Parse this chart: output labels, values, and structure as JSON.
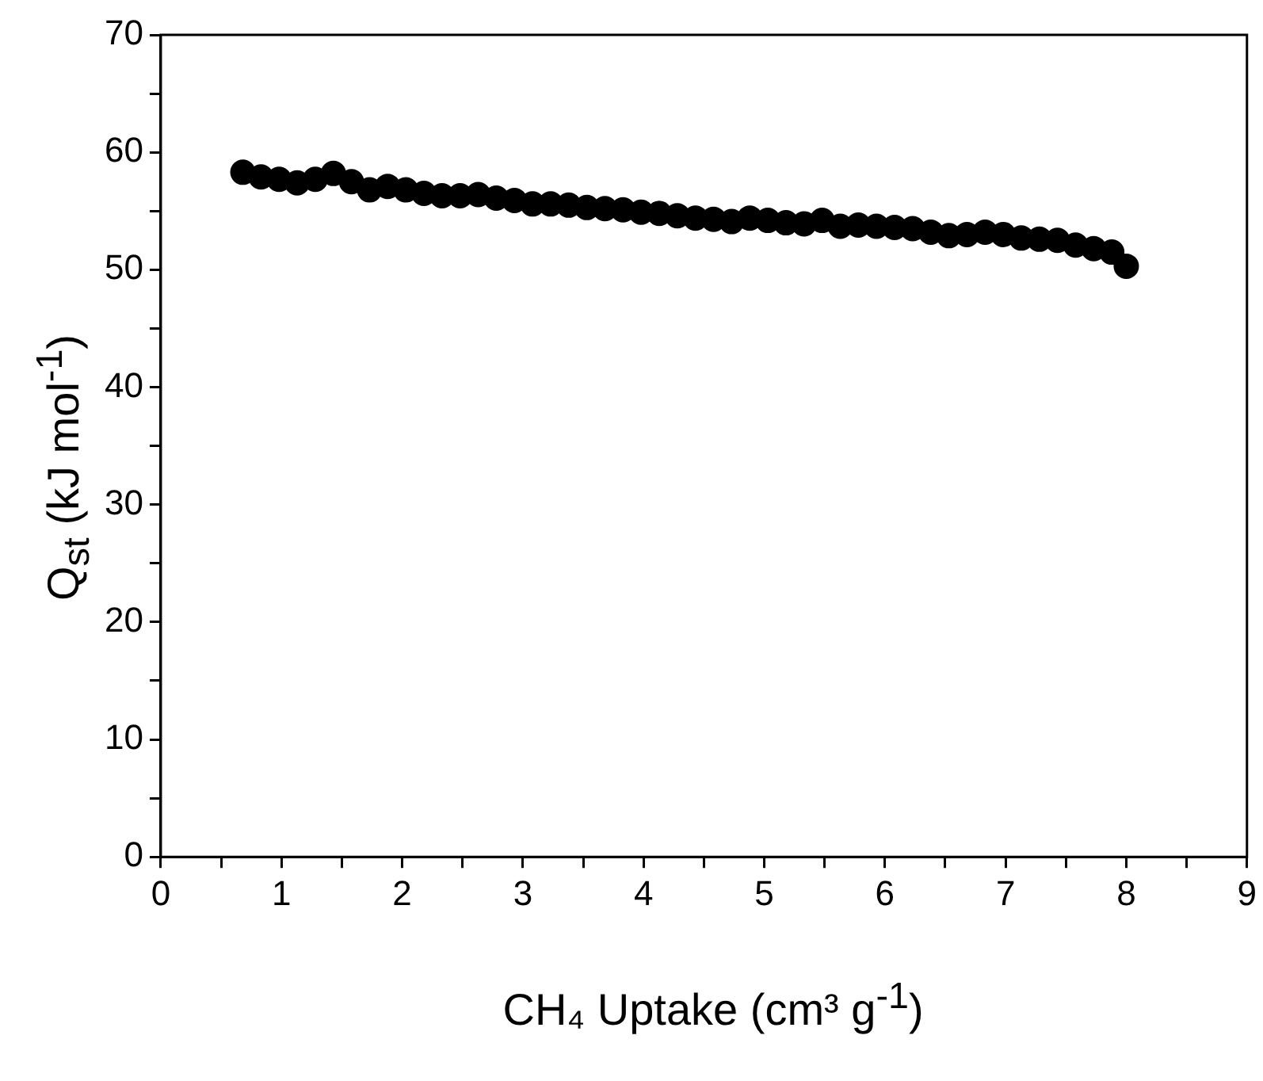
{
  "chart_data": {
    "type": "scatter",
    "xlabel": "CH₄ Uptake (cm³ g$^{-1}$)",
    "ylabel": "Q$_{st}$ (kJ mol$^{-1}$)",
    "x": [
      0.68,
      0.83,
      0.98,
      1.13,
      1.28,
      1.43,
      1.58,
      1.73,
      1.88,
      2.03,
      2.18,
      2.33,
      2.48,
      2.63,
      2.78,
      2.93,
      3.08,
      3.23,
      3.38,
      3.53,
      3.68,
      3.83,
      3.98,
      4.13,
      4.28,
      4.43,
      4.58,
      4.73,
      4.88,
      5.03,
      5.18,
      5.33,
      5.48,
      5.63,
      5.78,
      5.93,
      6.08,
      6.23,
      6.38,
      6.53,
      6.68,
      6.83,
      6.98,
      7.13,
      7.28,
      7.43,
      7.58,
      7.73,
      7.88,
      8.0
    ],
    "series": [
      {
        "color": "#000000",
        "values": [
          58.3,
          57.9,
          57.7,
          57.4,
          57.7,
          58.2,
          57.5,
          56.8,
          57.1,
          56.8,
          56.5,
          56.3,
          56.3,
          56.4,
          56.1,
          55.9,
          55.6,
          55.6,
          55.5,
          55.3,
          55.2,
          55.1,
          54.9,
          54.8,
          54.6,
          54.4,
          54.3,
          54.1,
          54.4,
          54.2,
          54.0,
          53.9,
          54.2,
          53.7,
          53.8,
          53.7,
          53.6,
          53.5,
          53.2,
          52.9,
          53.0,
          53.2,
          53.0,
          52.7,
          52.6,
          52.5,
          52.1,
          51.8,
          51.5,
          50.3
        ]
      }
    ],
    "xlim": [
      0,
      9
    ],
    "xticks": [
      0,
      {
        "value": 0.5,
        "label": null
      },
      1,
      {
        "value": 1.5,
        "label": null
      },
      2,
      {
        "value": 2.5,
        "label": null
      },
      3,
      {
        "value": 3.5,
        "label": null
      },
      4,
      {
        "value": 4.5,
        "label": null
      },
      5,
      {
        "value": 5.5,
        "label": null
      },
      6,
      {
        "value": 6.5,
        "label": null
      },
      7,
      {
        "value": 7.5,
        "label": null
      },
      8,
      {
        "value": 8.5,
        "label": null
      },
      9
    ],
    "ylim": [
      0,
      70
    ],
    "yticks": [
      0,
      {
        "value": 5,
        "label": null
      },
      10,
      {
        "value": 15,
        "label": null
      },
      20,
      {
        "value": 25,
        "label": null
      },
      30,
      {
        "value": 35,
        "label": null
      },
      40,
      {
        "value": 45,
        "label": null
      },
      50,
      {
        "value": 55,
        "label": null
      },
      60,
      {
        "value": 65,
        "label": null
      },
      70
    ],
    "marker": "circle",
    "grid": false,
    "legend": false
  }
}
